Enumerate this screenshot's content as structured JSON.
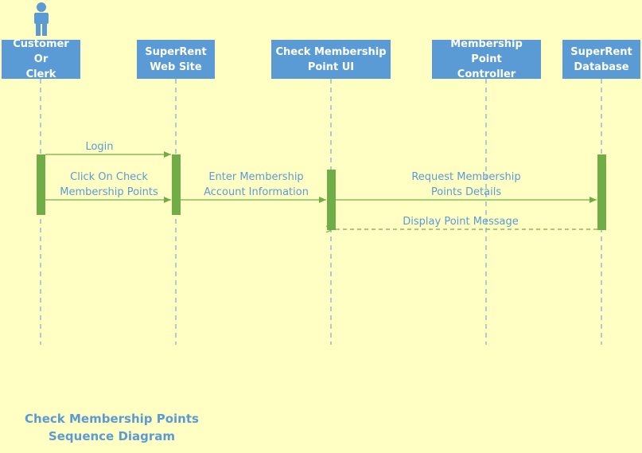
{
  "diagram": {
    "actor_icon": "person-icon",
    "lifelines": [
      {
        "id": "customer",
        "label": "Customer Or\nClerk"
      },
      {
        "id": "website",
        "label": "SuperRent\nWeb Site"
      },
      {
        "id": "ui",
        "label": "Check Membership\nPoint UI"
      },
      {
        "id": "controller",
        "label": "Membership Point\nController"
      },
      {
        "id": "database",
        "label": "SuperRent\nDatabase"
      }
    ],
    "messages": [
      {
        "from": "customer",
        "to": "website",
        "label": "Login",
        "style": "solid"
      },
      {
        "from": "customer",
        "to": "website",
        "label": "Click On Check\nMembership Points",
        "style": "solid"
      },
      {
        "from": "website",
        "to": "ui",
        "label": "Enter Membership\nAccount Information",
        "style": "solid"
      },
      {
        "from": "ui",
        "to": "database",
        "label": "Request  Membership\nPoints Details",
        "style": "solid"
      },
      {
        "from": "database",
        "to": "ui",
        "label": "Display Point Message",
        "style": "dashed"
      }
    ],
    "title": "Check Membership Points\nSequence Diagram",
    "colors": {
      "background": "#ffffc3",
      "box": "#5b9bd5",
      "activation": "#70ad47",
      "arrow": "#70ad47",
      "lifeline": "#5b9bd5",
      "text": "#5b9bd5"
    }
  }
}
